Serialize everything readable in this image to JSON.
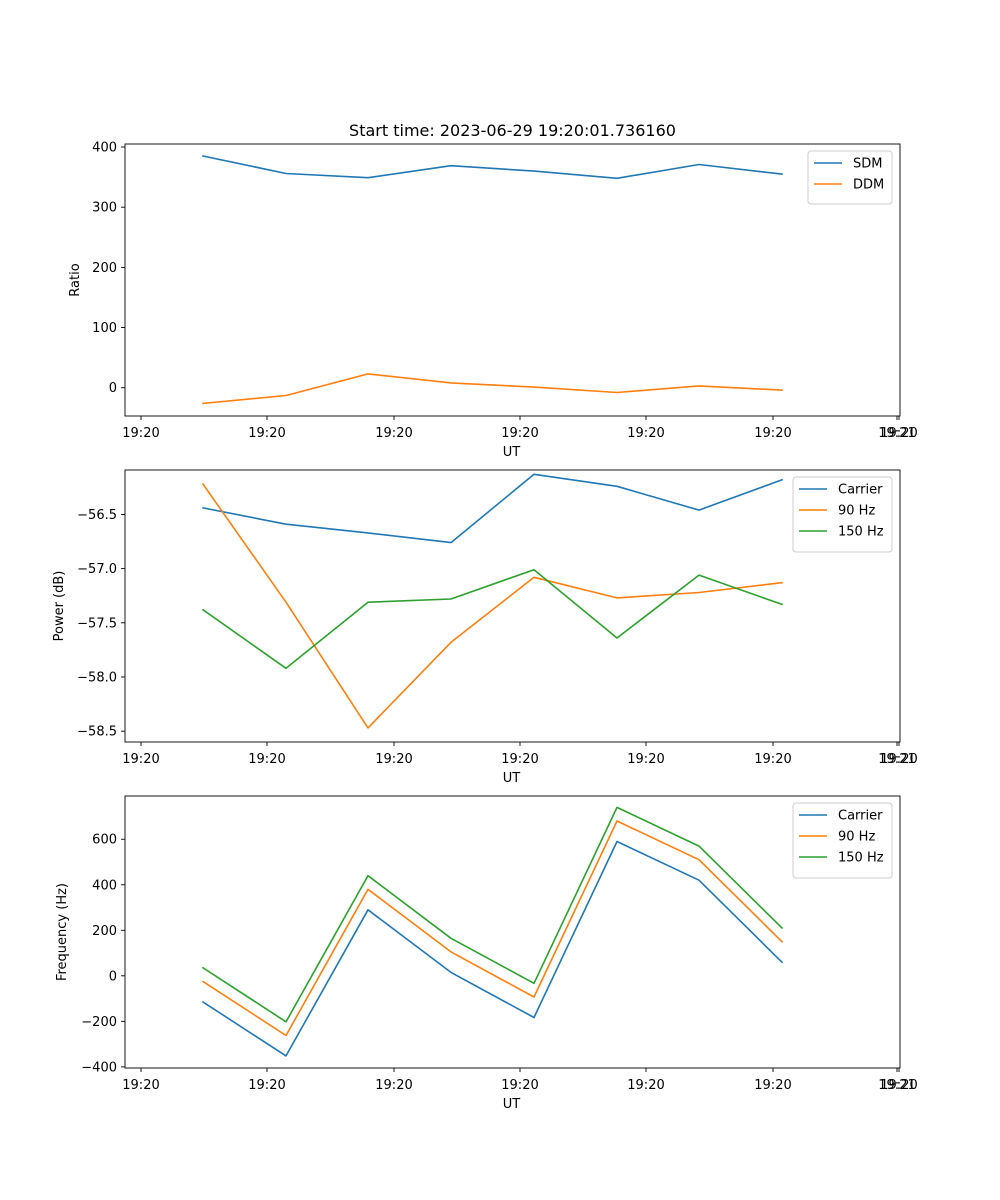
{
  "chart_data": [
    {
      "type": "line",
      "title": "Start time: 2023-06-29 19:20:01.736160",
      "xlabel": "UT",
      "ylabel": "Ratio",
      "x_tick_labels": [
        "19:20",
        "19:20",
        "19:20",
        "19:20",
        "19:20",
        "19:20",
        "19:20",
        "19:21"
      ],
      "y_ticks": [
        0,
        100,
        200,
        300,
        400
      ],
      "y_tick_labels": [
        "0",
        "100",
        "200",
        "300",
        "400"
      ],
      "ylim": [
        -47,
        405
      ],
      "legend_position": "top-right",
      "series": [
        {
          "name": "SDM",
          "color": "#1f77b4",
          "values": [
            385,
            356,
            349,
            369,
            360,
            348,
            371,
            355
          ]
        },
        {
          "name": "DDM",
          "color": "#ff7f0e",
          "values": [
            -26,
            -13,
            23,
            8,
            1,
            -8,
            3,
            -4
          ]
        }
      ]
    },
    {
      "type": "line",
      "title": "",
      "xlabel": "UT",
      "ylabel": "Power (dB)",
      "x_tick_labels": [
        "19:20",
        "19:20",
        "19:20",
        "19:20",
        "19:20",
        "19:20",
        "19:20",
        "19:21"
      ],
      "y_ticks": [
        -58.5,
        -58.0,
        -57.5,
        -57.0,
        -56.5
      ],
      "y_tick_labels": [
        "−58.5",
        "−58.0",
        "−57.5",
        "−57.0",
        "−56.5"
      ],
      "ylim": [
        -58.6,
        -56.09
      ],
      "legend_position": "top-right",
      "series": [
        {
          "name": "Carrier",
          "color": "#1f77b4",
          "values": [
            -56.44,
            -56.59,
            -56.67,
            -56.76,
            -56.13,
            -56.24,
            -56.46,
            -56.18
          ]
        },
        {
          "name": "90 Hz",
          "color": "#ff7f0e",
          "values": [
            -56.22,
            -57.31,
            -58.47,
            -57.68,
            -57.08,
            -57.27,
            -57.22,
            -57.13
          ]
        },
        {
          "name": "150 Hz",
          "color": "#2ca02c",
          "values": [
            -57.38,
            -57.92,
            -57.31,
            -57.28,
            -57.01,
            -57.64,
            -57.06,
            -57.33
          ]
        }
      ]
    },
    {
      "type": "line",
      "title": "",
      "xlabel": "UT",
      "ylabel": "Frequency (Hz)",
      "x_tick_labels": [
        "19:20",
        "19:20",
        "19:20",
        "19:20",
        "19:20",
        "19:20",
        "19:20",
        "19:21"
      ],
      "y_ticks": [
        -400,
        -200,
        0,
        200,
        400,
        600
      ],
      "y_tick_labels": [
        "−400",
        "−200",
        "0",
        "200",
        "400",
        "600"
      ],
      "ylim": [
        -405,
        790
      ],
      "legend_position": "top-right",
      "series": [
        {
          "name": "Carrier",
          "color": "#1f77b4",
          "values": [
            -115,
            -352,
            290,
            15,
            -183,
            590,
            420,
            60
          ]
        },
        {
          "name": "90 Hz",
          "color": "#ff7f0e",
          "values": [
            -25,
            -262,
            380,
            105,
            -93,
            680,
            510,
            150
          ]
        },
        {
          "name": "150 Hz",
          "color": "#2ca02c",
          "values": [
            35,
            -202,
            440,
            165,
            -33,
            740,
            570,
            210
          ]
        }
      ]
    }
  ]
}
